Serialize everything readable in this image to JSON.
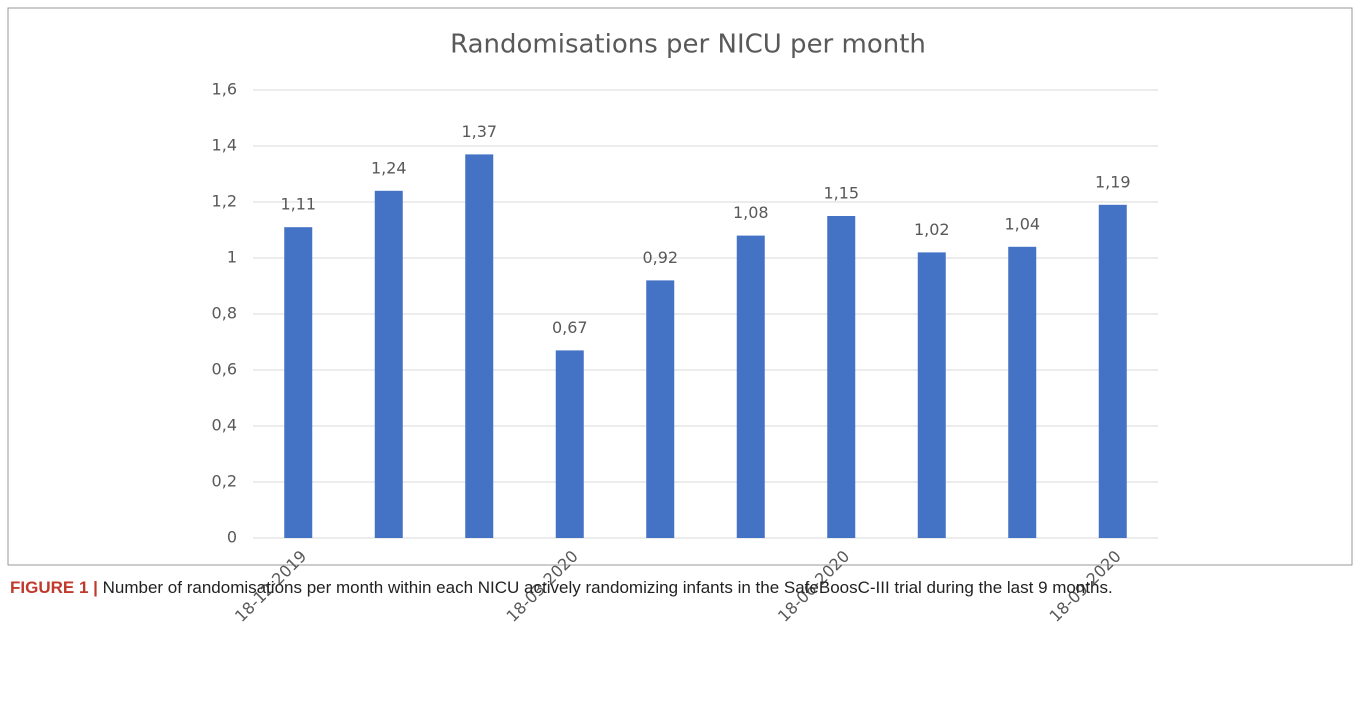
{
  "chart_data": {
    "type": "bar",
    "title": "Randomisations per NICU per month",
    "categories": [
      "18-12-2019",
      null,
      null,
      "18-03-2020",
      null,
      null,
      "18-06-2020",
      null,
      null,
      "18-09-2020"
    ],
    "values": [
      1.11,
      1.24,
      1.37,
      0.67,
      0.92,
      1.08,
      1.15,
      1.02,
      1.04,
      1.19
    ],
    "value_labels": [
      "1,11",
      "1,24",
      "1,37",
      "0,67",
      "0,92",
      "1,08",
      "1,15",
      "1,02",
      "1,04",
      "1,19"
    ],
    "color": "#4472c4",
    "ylim": [
      0,
      1.6
    ],
    "yticks": [
      0,
      {
        "value": 0.2,
        "label": "0,2"
      },
      {
        "value": 0.4,
        "label": "0,4"
      },
      {
        "value": 0.6,
        "label": "0,6"
      },
      {
        "value": 0.8,
        "label": "0,8"
      },
      1,
      {
        "value": 1.2,
        "label": "1,2"
      },
      {
        "value": 1.4,
        "label": "1,4"
      },
      {
        "value": 1.6,
        "label": "1,6"
      }
    ],
    "grid": true
  },
  "caption": {
    "label": "FIGURE 1 |",
    "text": "Number of randomisations per month within each NICU actively randomizing infants in the SafeBoosC-III trial during the last 9 months."
  }
}
